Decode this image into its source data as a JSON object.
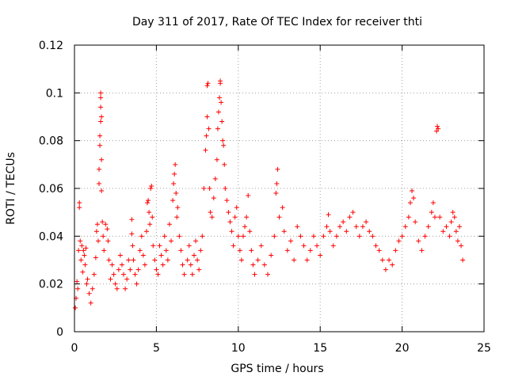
{
  "chart_data": {
    "type": "scatter",
    "title": "Day 311 of 2017, Rate Of TEC Index for receiver thti",
    "xlabel": "GPS time / hours",
    "ylabel": "ROTI / TECUs",
    "xlim": [
      0,
      25
    ],
    "ylim": [
      0,
      0.12
    ],
    "xticks": [
      0,
      5,
      10,
      15,
      20,
      25
    ],
    "xtick_labels": [
      "0",
      "5",
      "10",
      "15",
      "20",
      "25"
    ],
    "yticks": [
      0,
      0.02,
      0.04,
      0.06,
      0.08,
      0.1,
      0.12
    ],
    "ytick_labels": [
      "0",
      "0.02",
      "0.04",
      "0.06",
      "0.08",
      "0.1",
      "0.12"
    ],
    "grid": true,
    "marker": "plus",
    "color": "#ff0000",
    "series": [
      {
        "name": "thti",
        "points": [
          [
            0.05,
            0.01
          ],
          [
            0.1,
            0.014
          ],
          [
            0.15,
            0.021
          ],
          [
            0.2,
            0.018
          ],
          [
            0.25,
            0.034
          ],
          [
            0.3,
            0.052
          ],
          [
            0.3,
            0.054
          ],
          [
            0.35,
            0.038
          ],
          [
            0.4,
            0.03
          ],
          [
            0.45,
            0.036
          ],
          [
            0.5,
            0.025
          ],
          [
            0.55,
            0.034
          ],
          [
            0.6,
            0.032
          ],
          [
            0.65,
            0.028
          ],
          [
            0.7,
            0.035
          ],
          [
            0.75,
            0.02
          ],
          [
            0.8,
            0.022
          ],
          [
            0.9,
            0.016
          ],
          [
            1.0,
            0.012
          ],
          [
            1.1,
            0.018
          ],
          [
            1.2,
            0.024
          ],
          [
            1.3,
            0.031
          ],
          [
            1.35,
            0.042
          ],
          [
            1.4,
            0.045
          ],
          [
            1.45,
            0.038
          ],
          [
            1.5,
            0.062
          ],
          [
            1.5,
            0.068
          ],
          [
            1.55,
            0.078
          ],
          [
            1.55,
            0.082
          ],
          [
            1.6,
            0.088
          ],
          [
            1.6,
            0.094
          ],
          [
            1.6,
            0.098
          ],
          [
            1.6,
            0.1
          ],
          [
            1.65,
            0.09
          ],
          [
            1.65,
            0.072
          ],
          [
            1.65,
            0.059
          ],
          [
            1.7,
            0.046
          ],
          [
            1.75,
            0.04
          ],
          [
            1.8,
            0.034
          ],
          [
            1.9,
            0.045
          ],
          [
            2.0,
            0.043
          ],
          [
            2.05,
            0.038
          ],
          [
            2.1,
            0.03
          ],
          [
            2.2,
            0.022
          ],
          [
            2.3,
            0.028
          ],
          [
            2.4,
            0.024
          ],
          [
            2.5,
            0.02
          ],
          [
            2.6,
            0.018
          ],
          [
            2.7,
            0.026
          ],
          [
            2.8,
            0.032
          ],
          [
            2.9,
            0.028
          ],
          [
            3.0,
            0.024
          ],
          [
            3.1,
            0.018
          ],
          [
            3.2,
            0.022
          ],
          [
            3.3,
            0.03
          ],
          [
            3.4,
            0.026
          ],
          [
            3.5,
            0.041
          ],
          [
            3.5,
            0.047
          ],
          [
            3.55,
            0.036
          ],
          [
            3.6,
            0.03
          ],
          [
            3.7,
            0.024
          ],
          [
            3.8,
            0.02
          ],
          [
            3.9,
            0.026
          ],
          [
            4.0,
            0.034
          ],
          [
            4.1,
            0.04
          ],
          [
            4.2,
            0.032
          ],
          [
            4.3,
            0.028
          ],
          [
            4.4,
            0.042
          ],
          [
            4.45,
            0.054
          ],
          [
            4.5,
            0.055
          ],
          [
            4.55,
            0.05
          ],
          [
            4.6,
            0.045
          ],
          [
            4.65,
            0.06
          ],
          [
            4.7,
            0.061
          ],
          [
            4.75,
            0.048
          ],
          [
            4.8,
            0.036
          ],
          [
            4.9,
            0.03
          ],
          [
            5.0,
            0.026
          ],
          [
            5.1,
            0.024
          ],
          [
            5.2,
            0.036
          ],
          [
            5.3,
            0.032
          ],
          [
            5.4,
            0.028
          ],
          [
            5.5,
            0.04
          ],
          [
            5.6,
            0.034
          ],
          [
            5.7,
            0.03
          ],
          [
            5.8,
            0.045
          ],
          [
            5.9,
            0.038
          ],
          [
            6.0,
            0.055
          ],
          [
            6.05,
            0.062
          ],
          [
            6.1,
            0.066
          ],
          [
            6.15,
            0.07
          ],
          [
            6.2,
            0.058
          ],
          [
            6.25,
            0.048
          ],
          [
            6.3,
            0.052
          ],
          [
            6.4,
            0.04
          ],
          [
            6.5,
            0.034
          ],
          [
            6.6,
            0.028
          ],
          [
            6.7,
            0.024
          ],
          [
            6.9,
            0.03
          ],
          [
            7.0,
            0.036
          ],
          [
            7.1,
            0.028
          ],
          [
            7.2,
            0.024
          ],
          [
            7.3,
            0.032
          ],
          [
            7.4,
            0.038
          ],
          [
            7.5,
            0.03
          ],
          [
            7.6,
            0.026
          ],
          [
            7.7,
            0.034
          ],
          [
            7.8,
            0.04
          ],
          [
            7.9,
            0.06
          ],
          [
            8.0,
            0.076
          ],
          [
            8.05,
            0.082
          ],
          [
            8.1,
            0.09
          ],
          [
            8.1,
            0.103
          ],
          [
            8.15,
            0.104
          ],
          [
            8.2,
            0.085
          ],
          [
            8.25,
            0.06
          ],
          [
            8.3,
            0.05
          ],
          [
            8.4,
            0.048
          ],
          [
            8.5,
            0.056
          ],
          [
            8.6,
            0.064
          ],
          [
            8.7,
            0.072
          ],
          [
            8.75,
            0.085
          ],
          [
            8.8,
            0.092
          ],
          [
            8.85,
            0.098
          ],
          [
            8.9,
            0.104
          ],
          [
            8.9,
            0.105
          ],
          [
            8.95,
            0.096
          ],
          [
            9.0,
            0.088
          ],
          [
            9.05,
            0.08
          ],
          [
            9.1,
            0.078
          ],
          [
            9.15,
            0.07
          ],
          [
            9.2,
            0.06
          ],
          [
            9.3,
            0.055
          ],
          [
            9.4,
            0.05
          ],
          [
            9.5,
            0.046
          ],
          [
            9.6,
            0.042
          ],
          [
            9.7,
            0.036
          ],
          [
            9.8,
            0.048
          ],
          [
            9.9,
            0.052
          ],
          [
            10.0,
            0.04
          ],
          [
            10.1,
            0.034
          ],
          [
            10.2,
            0.03
          ],
          [
            10.3,
            0.04
          ],
          [
            10.4,
            0.044
          ],
          [
            10.5,
            0.048
          ],
          [
            10.6,
            0.057
          ],
          [
            10.7,
            0.042
          ],
          [
            10.8,
            0.034
          ],
          [
            10.9,
            0.028
          ],
          [
            11.0,
            0.024
          ],
          [
            11.2,
            0.03
          ],
          [
            11.4,
            0.036
          ],
          [
            11.6,
            0.028
          ],
          [
            11.8,
            0.024
          ],
          [
            12.0,
            0.032
          ],
          [
            12.2,
            0.04
          ],
          [
            12.3,
            0.058
          ],
          [
            12.35,
            0.062
          ],
          [
            12.4,
            0.068
          ],
          [
            12.5,
            0.048
          ],
          [
            12.7,
            0.052
          ],
          [
            12.8,
            0.042
          ],
          [
            13.0,
            0.034
          ],
          [
            13.2,
            0.038
          ],
          [
            13.4,
            0.03
          ],
          [
            13.6,
            0.044
          ],
          [
            13.8,
            0.04
          ],
          [
            14.0,
            0.036
          ],
          [
            14.2,
            0.03
          ],
          [
            14.4,
            0.034
          ],
          [
            14.6,
            0.04
          ],
          [
            14.8,
            0.036
          ],
          [
            15.0,
            0.032
          ],
          [
            15.2,
            0.04
          ],
          [
            15.4,
            0.044
          ],
          [
            15.5,
            0.049
          ],
          [
            15.6,
            0.042
          ],
          [
            15.8,
            0.036
          ],
          [
            16.0,
            0.04
          ],
          [
            16.2,
            0.044
          ],
          [
            16.4,
            0.046
          ],
          [
            16.6,
            0.042
          ],
          [
            16.8,
            0.048
          ],
          [
            17.0,
            0.05
          ],
          [
            17.2,
            0.044
          ],
          [
            17.4,
            0.04
          ],
          [
            17.6,
            0.044
          ],
          [
            17.8,
            0.046
          ],
          [
            18.0,
            0.042
          ],
          [
            18.2,
            0.04
          ],
          [
            18.4,
            0.036
          ],
          [
            18.6,
            0.034
          ],
          [
            18.8,
            0.03
          ],
          [
            19.0,
            0.026
          ],
          [
            19.2,
            0.03
          ],
          [
            19.4,
            0.028
          ],
          [
            19.6,
            0.034
          ],
          [
            19.8,
            0.038
          ],
          [
            20.0,
            0.04
          ],
          [
            20.2,
            0.044
          ],
          [
            20.4,
            0.048
          ],
          [
            20.5,
            0.054
          ],
          [
            20.6,
            0.059
          ],
          [
            20.7,
            0.056
          ],
          [
            20.8,
            0.046
          ],
          [
            21.0,
            0.038
          ],
          [
            21.2,
            0.034
          ],
          [
            21.4,
            0.04
          ],
          [
            21.6,
            0.044
          ],
          [
            21.8,
            0.05
          ],
          [
            21.9,
            0.054
          ],
          [
            22.0,
            0.048
          ],
          [
            22.1,
            0.084
          ],
          [
            22.15,
            0.086
          ],
          [
            22.2,
            0.085
          ],
          [
            22.3,
            0.048
          ],
          [
            22.5,
            0.042
          ],
          [
            22.7,
            0.044
          ],
          [
            22.9,
            0.04
          ],
          [
            23.0,
            0.046
          ],
          [
            23.1,
            0.05
          ],
          [
            23.2,
            0.048
          ],
          [
            23.3,
            0.042
          ],
          [
            23.4,
            0.038
          ],
          [
            23.5,
            0.044
          ],
          [
            23.6,
            0.036
          ],
          [
            23.7,
            0.03
          ]
        ]
      }
    ]
  }
}
